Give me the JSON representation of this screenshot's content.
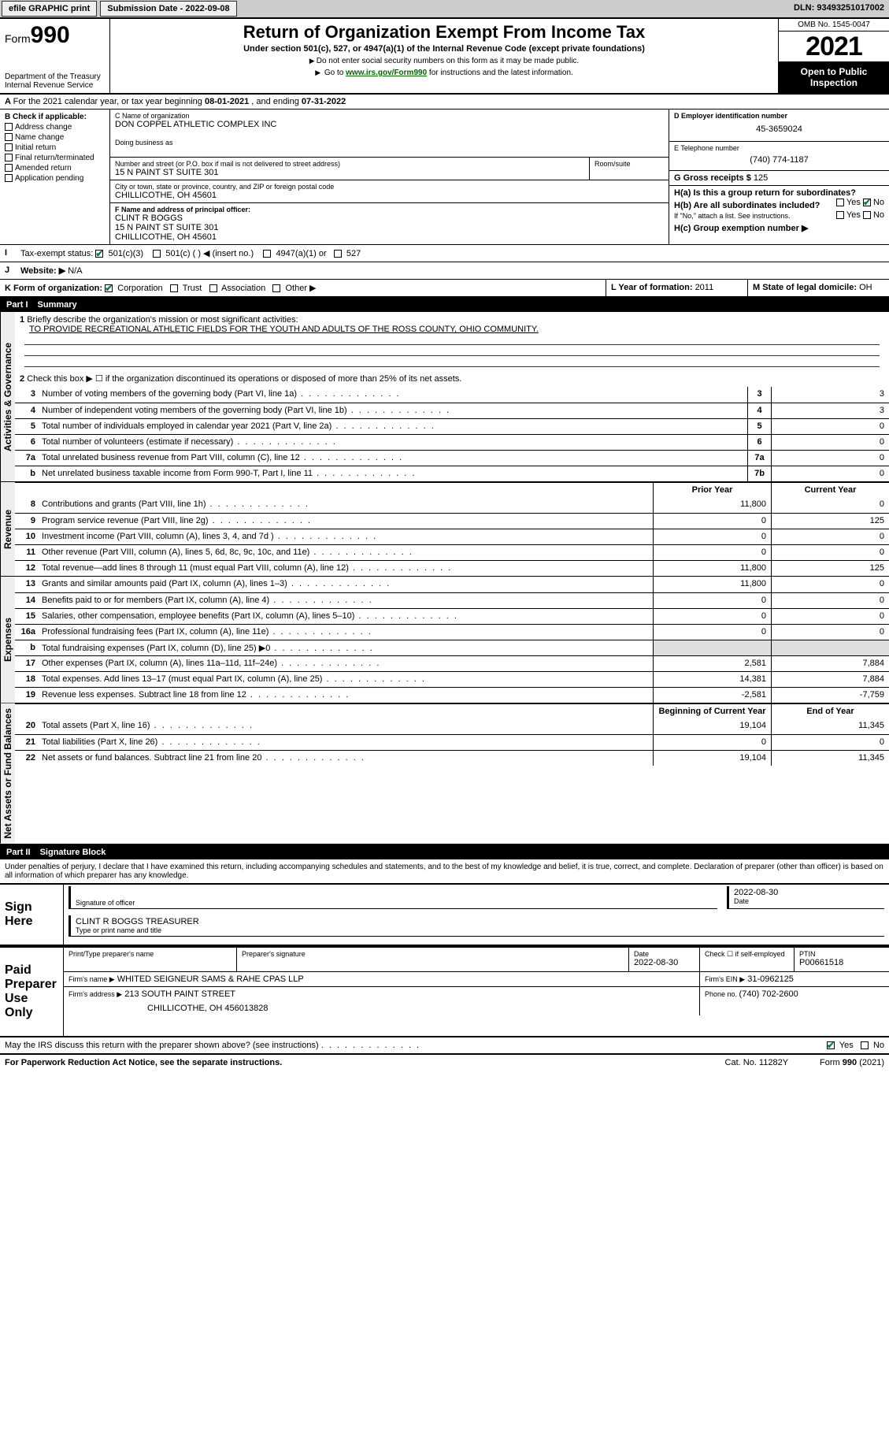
{
  "topbar": {
    "efile": "efile GRAPHIC print",
    "subdate_label": "Submission Date - ",
    "subdate": "2022-09-08",
    "dln_label": "DLN: ",
    "dln": "93493251017002"
  },
  "header": {
    "form_word": "Form",
    "form_num": "990",
    "dept": "Department of the Treasury",
    "irs": "Internal Revenue Service",
    "title": "Return of Organization Exempt From Income Tax",
    "sub1": "Under section 501(c), 527, or 4947(a)(1) of the Internal Revenue Code (except private foundations)",
    "sub2": "Do not enter social security numbers on this form as it may be made public.",
    "sub3_pre": "Go to ",
    "sub3_link": "www.irs.gov/Form990",
    "sub3_post": " for instructions and the latest information.",
    "omb": "OMB No. 1545-0047",
    "year": "2021",
    "open1": "Open to Public",
    "open2": "Inspection"
  },
  "rowA": {
    "pre": "For the 2021 calendar year, or tax year beginning ",
    "begin": "08-01-2021",
    "mid": " , and ending ",
    "end": "07-31-2022"
  },
  "colB": {
    "hdr": "B Check if applicable:",
    "items": [
      "Address change",
      "Name change",
      "Initial return",
      "Final return/terminated",
      "Amended return",
      "Application pending"
    ]
  },
  "colC": {
    "name_lbl": "C Name of organization",
    "name": "DON COPPEL ATHLETIC COMPLEX INC",
    "dba_lbl": "Doing business as",
    "addr_lbl": "Number and street (or P.O. box if mail is not delivered to street address)",
    "room_lbl": "Room/suite",
    "addr": "15 N PAINT ST SUITE 301",
    "city_lbl": "City or town, state or province, country, and ZIP or foreign postal code",
    "city": "CHILLICOTHE, OH  45601",
    "f_lbl": "F Name and address of principal officer:",
    "f_name": "CLINT R BOGGS",
    "f_addr1": "15 N PAINT ST SUITE 301",
    "f_addr2": "CHILLICOTHE, OH  45601"
  },
  "colD": {
    "d_lbl": "D Employer identification number",
    "d_val": "45-3659024",
    "e_lbl": "E Telephone number",
    "e_val": "(740) 774-1187",
    "g_lbl": "G Gross receipts $ ",
    "g_val": "125",
    "ha_lbl": "H(a)  Is this a group return for subordinates?",
    "hb_lbl": "H(b)  Are all subordinates included?",
    "hb_note": "If \"No,\" attach a list. See instructions.",
    "hc_lbl": "H(c)  Group exemption number ▶",
    "yes": "Yes",
    "no": "No"
  },
  "rowI": {
    "lbl": "Tax-exempt status:",
    "o1": "501(c)(3)",
    "o2": "501(c) (  ) ◀ (insert no.)",
    "o3": "4947(a)(1) or",
    "o4": "527"
  },
  "rowJ": {
    "lbl": "Website: ▶",
    "val": "N/A"
  },
  "rowK": {
    "lbl": "K Form of organization:",
    "o1": "Corporation",
    "o2": "Trust",
    "o3": "Association",
    "o4": "Other ▶",
    "l_lbl": "L Year of formation: ",
    "l_val": "2011",
    "m_lbl": "M State of legal domicile: ",
    "m_val": "OH"
  },
  "part1": {
    "hdr": "Part I",
    "title": "Summary",
    "sec_ag": "Activities & Governance",
    "sec_rev": "Revenue",
    "sec_exp": "Expenses",
    "sec_na": "Net Assets or Fund Balances",
    "l1": "Briefly describe the organization's mission or most significant activities:",
    "mission": "TO PROVIDE RECREATIONAL ATHLETIC FIELDS FOR THE YOUTH AND ADULTS OF THE ROSS COUNTY, OHIO COMMUNITY.",
    "l2": "Check this box ▶ ☐  if the organization discontinued its operations or disposed of more than 25% of its net assets.",
    "rows_ag": [
      {
        "n": "3",
        "t": "Number of voting members of the governing body (Part VI, line 1a)",
        "b": "3",
        "v": "3"
      },
      {
        "n": "4",
        "t": "Number of independent voting members of the governing body (Part VI, line 1b)",
        "b": "4",
        "v": "3"
      },
      {
        "n": "5",
        "t": "Total number of individuals employed in calendar year 2021 (Part V, line 2a)",
        "b": "5",
        "v": "0"
      },
      {
        "n": "6",
        "t": "Total number of volunteers (estimate if necessary)",
        "b": "6",
        "v": "0"
      },
      {
        "n": "7a",
        "t": "Total unrelated business revenue from Part VIII, column (C), line 12",
        "b": "7a",
        "v": "0"
      },
      {
        "n": "b",
        "t": "Net unrelated business taxable income from Form 990-T, Part I, line 11",
        "b": "7b",
        "v": "0"
      }
    ],
    "col_prior": "Prior Year",
    "col_curr": "Current Year",
    "col_beg": "Beginning of Current Year",
    "col_end": "End of Year",
    "rows_rev": [
      {
        "n": "8",
        "t": "Contributions and grants (Part VIII, line 1h)",
        "p": "11,800",
        "c": "0"
      },
      {
        "n": "9",
        "t": "Program service revenue (Part VIII, line 2g)",
        "p": "0",
        "c": "125"
      },
      {
        "n": "10",
        "t": "Investment income (Part VIII, column (A), lines 3, 4, and 7d )",
        "p": "0",
        "c": "0"
      },
      {
        "n": "11",
        "t": "Other revenue (Part VIII, column (A), lines 5, 6d, 8c, 9c, 10c, and 11e)",
        "p": "0",
        "c": "0"
      },
      {
        "n": "12",
        "t": "Total revenue—add lines 8 through 11 (must equal Part VIII, column (A), line 12)",
        "p": "11,800",
        "c": "125"
      }
    ],
    "rows_exp": [
      {
        "n": "13",
        "t": "Grants and similar amounts paid (Part IX, column (A), lines 1–3)",
        "p": "11,800",
        "c": "0"
      },
      {
        "n": "14",
        "t": "Benefits paid to or for members (Part IX, column (A), line 4)",
        "p": "0",
        "c": "0"
      },
      {
        "n": "15",
        "t": "Salaries, other compensation, employee benefits (Part IX, column (A), lines 5–10)",
        "p": "0",
        "c": "0"
      },
      {
        "n": "16a",
        "t": "Professional fundraising fees (Part IX, column (A), line 11e)",
        "p": "0",
        "c": "0"
      },
      {
        "n": "b",
        "t": "Total fundraising expenses (Part IX, column (D), line 25) ▶0",
        "p": "",
        "c": "",
        "shade": true
      },
      {
        "n": "17",
        "t": "Other expenses (Part IX, column (A), lines 11a–11d, 11f–24e)",
        "p": "2,581",
        "c": "7,884"
      },
      {
        "n": "18",
        "t": "Total expenses. Add lines 13–17 (must equal Part IX, column (A), line 25)",
        "p": "14,381",
        "c": "7,884"
      },
      {
        "n": "19",
        "t": "Revenue less expenses. Subtract line 18 from line 12",
        "p": "-2,581",
        "c": "-7,759"
      }
    ],
    "rows_na": [
      {
        "n": "20",
        "t": "Total assets (Part X, line 16)",
        "p": "19,104",
        "c": "11,345"
      },
      {
        "n": "21",
        "t": "Total liabilities (Part X, line 26)",
        "p": "0",
        "c": "0"
      },
      {
        "n": "22",
        "t": "Net assets or fund balances. Subtract line 21 from line 20",
        "p": "19,104",
        "c": "11,345"
      }
    ]
  },
  "part2": {
    "hdr": "Part II",
    "title": "Signature Block",
    "decl": "Under penalties of perjury, I declare that I have examined this return, including accompanying schedules and statements, and to the best of my knowledge and belief, it is true, correct, and complete. Declaration of preparer (other than officer) is based on all information of which preparer has any knowledge.",
    "sign_here": "Sign Here",
    "sig_officer": "Signature of officer",
    "date": "Date",
    "sig_date": "2022-08-30",
    "name_title": "CLINT R BOGGS  TREASURER",
    "name_title_lbl": "Type or print name and title",
    "paid": "Paid Preparer Use Only",
    "pp_name_lbl": "Print/Type preparer's name",
    "pp_sig_lbl": "Preparer's signature",
    "pp_date_lbl": "Date",
    "pp_date": "2022-08-30",
    "pp_check": "Check ☐ if self-employed",
    "ptin_lbl": "PTIN",
    "ptin": "P00661518",
    "firm_name_lbl": "Firm's name    ▶",
    "firm_name": "WHITED SEIGNEUR SAMS & RAHE CPAS LLP",
    "firm_ein_lbl": "Firm's EIN ▶",
    "firm_ein": "31-0962125",
    "firm_addr_lbl": "Firm's address ▶",
    "firm_addr1": "213 SOUTH PAINT STREET",
    "firm_addr2": "CHILLICOTHE, OH  456013828",
    "phone_lbl": "Phone no. ",
    "phone": "(740) 702-2600",
    "discuss": "May the IRS discuss this return with the preparer shown above? (see instructions)"
  },
  "footer": {
    "left": "For Paperwork Reduction Act Notice, see the separate instructions.",
    "mid": "Cat. No. 11282Y",
    "right_pre": "Form ",
    "right_b": "990",
    "right_post": " (2021)"
  }
}
